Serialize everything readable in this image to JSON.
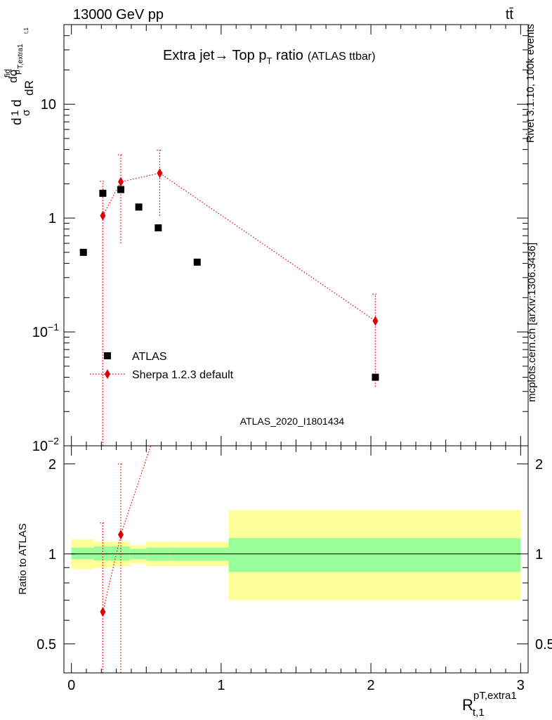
{
  "header": {
    "energy": "13000 GeV pp",
    "process": "tt̄"
  },
  "side_labels": {
    "rivet": "Rivet 3.1.10,  100k events",
    "site": "mcplots.cern.ch [arXiv:1306.3436]"
  },
  "chart_data": [
    {
      "type": "scatter",
      "title": "Extra jet→ Top p",
      "title_sub": "T",
      "title_rest": " ratio",
      "title_note": "(ATLAS ttbar)",
      "ylabel": "dσ/dR (normalized)",
      "ylabel_parts": [
        "d",
        "1",
        "σ",
        "d",
        "dσ",
        "fid",
        "dR",
        "p",
        "T,extra1",
        "t,1"
      ],
      "yscale": "log",
      "ylim": [
        0.01,
        50
      ],
      "xlim": [
        -0.05,
        3.05
      ],
      "y_ticks": [
        {
          "value": 10,
          "label": "10"
        },
        {
          "value": 1,
          "label": "1"
        },
        {
          "value": 0.1,
          "label": "10",
          "exp": "−1"
        },
        {
          "value": 0.01,
          "label": "10",
          "exp": "−2"
        }
      ],
      "watermark": "ATLAS_2020_I1801434",
      "legend_position": "bottom-left",
      "series": [
        {
          "name": "ATLAS",
          "marker": "square",
          "color": "#000000",
          "points": [
            {
              "x": 0.08,
              "y": 0.5
            },
            {
              "x": 0.21,
              "y": 1.65
            },
            {
              "x": 0.33,
              "y": 1.78
            },
            {
              "x": 0.45,
              "y": 1.25
            },
            {
              "x": 0.58,
              "y": 0.82
            },
            {
              "x": 0.84,
              "y": 0.41
            },
            {
              "x": 2.03,
              "y": 0.04
            }
          ]
        },
        {
          "name": "Sherpa 1.2.3 default",
          "marker": "diamond",
          "color": "#e00000",
          "line": "dotted",
          "points": [
            {
              "x": 0.21,
              "y": 1.05,
              "ylo": 0.005,
              "yhi": 2.1
            },
            {
              "x": 0.33,
              "y": 2.08,
              "ylo": 0.6,
              "yhi": 3.6
            },
            {
              "x": 0.59,
              "y": 2.48,
              "ylo": 1.05,
              "yhi": 3.95
            },
            {
              "x": 2.03,
              "y": 0.125,
              "ylo": 0.033,
              "yhi": 0.215
            }
          ]
        }
      ]
    },
    {
      "type": "area",
      "ylabel": "Ratio to ATLAS",
      "xlabel": "R",
      "xlabel_sup": "pT,extra1",
      "xlabel_sub": "t,1",
      "yscale": "log",
      "ylim": [
        0.4,
        2.3
      ],
      "xlim": [
        -0.05,
        3.05
      ],
      "x_ticks": [
        "0",
        "1",
        "2",
        "3"
      ],
      "y_ticks": [
        {
          "value": 2,
          "label": "2"
        },
        {
          "value": 1,
          "label": "1"
        },
        {
          "value": 0.5,
          "label": "0.5"
        }
      ],
      "colors": {
        "stat": "#99ff99",
        "total": "#ffff99",
        "mc": "#e00000"
      },
      "bands": [
        {
          "x0": 0.0,
          "x1": 0.15,
          "stat": [
            0.96,
            1.05
          ],
          "total": [
            0.89,
            1.12
          ]
        },
        {
          "x0": 0.15,
          "x1": 0.27,
          "stat": [
            0.95,
            1.06
          ],
          "total": [
            0.9,
            1.1
          ]
        },
        {
          "x0": 0.27,
          "x1": 0.39,
          "stat": [
            0.95,
            1.06
          ],
          "total": [
            0.91,
            1.1
          ]
        },
        {
          "x0": 0.39,
          "x1": 0.5,
          "stat": [
            0.96,
            1.04
          ],
          "total": [
            0.93,
            1.07
          ]
        },
        {
          "x0": 0.5,
          "x1": 0.65,
          "stat": [
            0.95,
            1.05
          ],
          "total": [
            0.91,
            1.1
          ]
        },
        {
          "x0": 0.65,
          "x1": 1.05,
          "stat": [
            0.95,
            1.05
          ],
          "total": [
            0.91,
            1.1
          ]
        },
        {
          "x0": 1.05,
          "x1": 3.0,
          "stat": [
            0.87,
            1.13
          ],
          "total": [
            0.7,
            1.4
          ]
        }
      ],
      "mc_points": [
        {
          "x": 0.21,
          "y": 0.64,
          "ylo": 0.3,
          "yhi": 1.27
        },
        {
          "x": 0.33,
          "y": 1.16,
          "ylo": 0.3,
          "yhi": 2.0
        }
      ],
      "mc_line_end": {
        "x": 0.53,
        "y": 2.35
      }
    }
  ]
}
